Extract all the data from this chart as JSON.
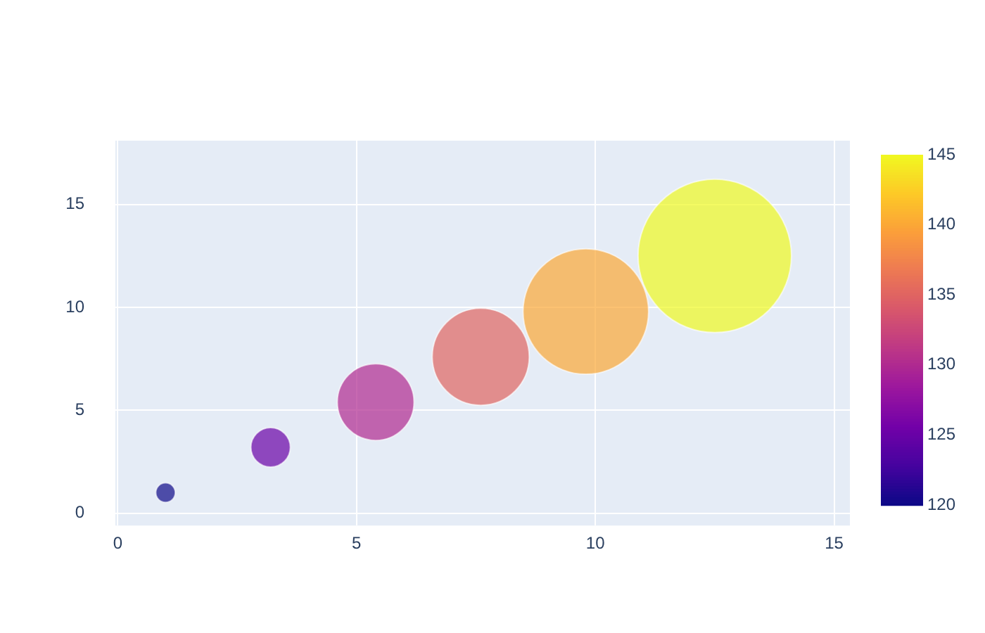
{
  "chart_data": {
    "type": "bubble",
    "x": [
      1,
      3.2,
      5.4,
      7.6,
      9.8,
      12.5
    ],
    "values": [
      1,
      3.2,
      5.4,
      7.6,
      9.8,
      12.5
    ],
    "sizes": [
      0.016,
      0.066,
      0.25,
      0.4,
      0.67,
      1
    ],
    "cvalues": [
      120,
      125,
      130,
      135,
      140,
      145
    ],
    "clim": [
      120,
      145
    ],
    "cticks": [
      120,
      125,
      130,
      135,
      140,
      145
    ],
    "xlim": [
      -0.05,
      15.33
    ],
    "xticks": [
      0,
      5,
      10,
      15
    ],
    "ylim": [
      -0.6,
      18.1
    ],
    "yticks": [
      0,
      5,
      10,
      15
    ],
    "grid": true,
    "legend": false
  }
}
